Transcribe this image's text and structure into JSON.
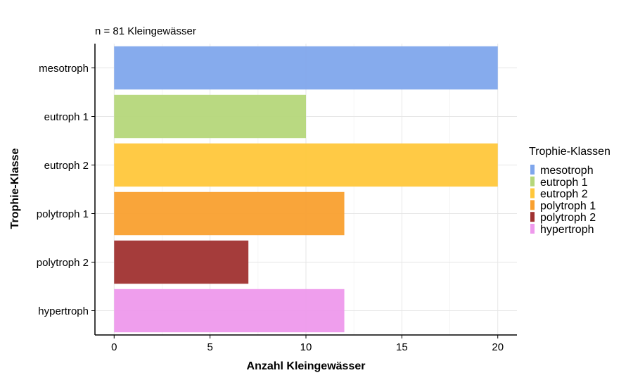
{
  "chart_data": {
    "type": "bar",
    "orientation": "horizontal",
    "subtitle": "n =  81 Kleingewässer",
    "xlabel": "Anzahl Kleingewässer",
    "ylabel": "Trophie-Klasse",
    "categories": [
      "mesotroph",
      "eutroph 1",
      "eutroph 2",
      "polytroph 1",
      "polytroph 2",
      "hypertroph"
    ],
    "values": [
      20,
      10,
      20,
      12,
      7,
      12
    ],
    "colors": [
      "#7FA6EC",
      "#B5D77A",
      "#FFC73B",
      "#F9A02F",
      "#A03130",
      "#EE99EC"
    ],
    "xlim": [
      -1,
      21
    ],
    "xticks": [
      0,
      5,
      10,
      15,
      20
    ],
    "grid": true,
    "legend": {
      "title": "Trophie-Klassen",
      "position": "right",
      "entries": [
        "mesotroph",
        "eutroph 1",
        "eutroph 2",
        "polytroph 1",
        "polytroph 2",
        "hypertroph"
      ]
    }
  }
}
